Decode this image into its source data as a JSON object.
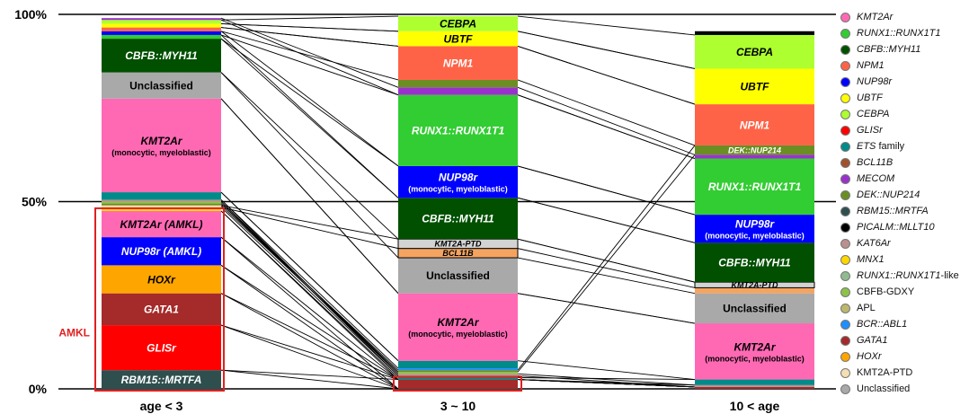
{
  "chart_data": {
    "type": "bar",
    "subtype": "stacked-100-percent-with-connectors",
    "y_tick_labels": [
      "100%",
      "50%",
      "0%"
    ],
    "ylim": [
      0,
      100
    ],
    "categories": [
      "age < 3",
      "3 ~ 10",
      "10 < age"
    ],
    "bar_colors": [
      "#ffffff",
      "#ffffff",
      "#ffffff"
    ],
    "highlight_label": "AMKL",
    "highlight_color": "#e02020",
    "grid": "horizontal lines at 0%, 50%, 100%",
    "legend_position": "right",
    "stacks": [
      {
        "category": "age < 3",
        "segments": [
          {
            "key": "RBM15",
            "label": "RBM15::MRTFA",
            "value": 5.0,
            "color": "#2f4f4f"
          },
          {
            "key": "GLIS",
            "label": "GLISr",
            "value": 12.0,
            "color": "#ff0000"
          },
          {
            "key": "GATA1",
            "label": "GATA1",
            "value": 8.5,
            "color": "#a52a2a"
          },
          {
            "key": "HOX",
            "label": "HOXr",
            "value": 7.5,
            "color": "#ffa500"
          },
          {
            "key": "NUP98_AMKL",
            "label": "NUP98r (AMKL)",
            "value": 7.5,
            "color": "#0000ff"
          },
          {
            "key": "KMT2A_AMKL",
            "label": "KMT2Ar (AMKL)",
            "value": 7.0,
            "color": "#ff69b4"
          },
          {
            "key": "MNX1",
            "label": "",
            "value": 1.0,
            "color": "#ffd700"
          },
          {
            "key": "KMT2APTD",
            "label": "",
            "value": 0.5,
            "color": "#f5deb3"
          },
          {
            "key": "DEK",
            "label": "",
            "value": 0.5,
            "color": "#6b8e23"
          },
          {
            "key": "CBFBGDXY",
            "label": "",
            "value": 0.5,
            "color": "#8bc34a"
          },
          {
            "key": "KAT6A",
            "label": "",
            "value": 0.5,
            "color": "#bc8f8f"
          },
          {
            "key": "ETS",
            "label": "",
            "value": 2.0,
            "color": "#008b8b"
          },
          {
            "key": "KMT2A",
            "label": "KMT2Ar",
            "sublabel": "(monocytic, myeloblastic)",
            "value": 25.0,
            "color": "#ff69b4"
          },
          {
            "key": "UNCL",
            "label": "Unclassified",
            "value": 7.0,
            "color": "#a9a9a9"
          },
          {
            "key": "CBFB",
            "label": "CBFB::MYH11",
            "value": 9.0,
            "color": "#005000"
          },
          {
            "key": "RUNX1",
            "label": "",
            "value": 1.0,
            "color": "#32cd32"
          },
          {
            "key": "NUP98",
            "label": "",
            "value": 1.0,
            "color": "#0000ff"
          },
          {
            "key": "NPM1",
            "label": "",
            "value": 1.0,
            "color": "#ff6347"
          },
          {
            "key": "UBTF",
            "label": "",
            "value": 1.0,
            "color": "#ffff00"
          },
          {
            "key": "CEBPA",
            "label": "",
            "value": 1.0,
            "color": "#adff2f"
          },
          {
            "key": "MECOM",
            "label": "",
            "value": 0.5,
            "color": "#9932cc"
          }
        ]
      },
      {
        "category": "3 ~ 10",
        "segments": [
          {
            "key": "AMKLgrp",
            "label": "",
            "value": 2.5,
            "color": "#a52a2a"
          },
          {
            "key": "ETS",
            "label": "",
            "value": 0.5,
            "color": "#008b8b"
          },
          {
            "key": "MNX1",
            "label": "",
            "value": 0.5,
            "color": "#ffd700"
          },
          {
            "key": "KAT6A",
            "label": "",
            "value": 0.5,
            "color": "#bc8f8f"
          },
          {
            "key": "CBFBGDXY",
            "label": "",
            "value": 0.5,
            "color": "#8bc34a"
          },
          {
            "key": "DEK",
            "label": "",
            "value": 0.5,
            "color": "#6b8e23"
          },
          {
            "key": "BCRABL",
            "label": "",
            "value": 0.5,
            "color": "#1e90ff"
          },
          {
            "key": "ETS2",
            "label": "",
            "value": 2.0,
            "color": "#008b8b"
          },
          {
            "key": "KMT2A",
            "label": "KMT2Ar",
            "sublabel": "(monocytic, myeloblastic)",
            "value": 18.0,
            "color": "#ff69b4"
          },
          {
            "key": "UNCL",
            "label": "Unclassified",
            "value": 9.5,
            "color": "#a9a9a9"
          },
          {
            "key": "BCL11B",
            "label": "BCL11B",
            "value": 2.5,
            "color": "#f4a460"
          },
          {
            "key": "KMT2APTD",
            "label": "KMT2A-PTD",
            "value": 2.5,
            "color": "#d3d3d3"
          },
          {
            "key": "CBFB",
            "label": "CBFB::MYH11",
            "value": 11.0,
            "color": "#005000"
          },
          {
            "key": "NUP98",
            "label": "NUP98r",
            "sublabel": "(monocytic, myeloblastic)",
            "value": 8.5,
            "color": "#0000ff"
          },
          {
            "key": "RUNX1",
            "label": "RUNX1::RUNX1T1",
            "value": 19.0,
            "color": "#32cd32"
          },
          {
            "key": "MECOM",
            "label": "",
            "value": 2.0,
            "color": "#9932cc"
          },
          {
            "key": "DEK2",
            "label": "",
            "value": 2.0,
            "color": "#6b8e23"
          },
          {
            "key": "NPM1",
            "label": "NPM1",
            "value": 9.0,
            "color": "#ff6347"
          },
          {
            "key": "UBTF",
            "label": "UBTF",
            "value": 4.0,
            "color": "#ffff00"
          },
          {
            "key": "CEBPA",
            "label": "CEBPA",
            "value": 4.0,
            "color": "#adff2f"
          }
        ]
      },
      {
        "category": "10 < age",
        "segments": [
          {
            "key": "AMKLgrp",
            "label": "",
            "value": 0.5,
            "color": "#a52a2a"
          },
          {
            "key": "KAT6A",
            "label": "",
            "value": 0.5,
            "color": "#bc8f8f"
          },
          {
            "key": "ETS",
            "label": "",
            "value": 1.5,
            "color": "#008b8b"
          },
          {
            "key": "KMT2A",
            "label": "KMT2Ar",
            "sublabel": "(monocytic, myeloblastic)",
            "value": 15.0,
            "color": "#ff69b4"
          },
          {
            "key": "UNCL",
            "label": "Unclassified",
            "value": 8.0,
            "color": "#a9a9a9"
          },
          {
            "key": "BCL11B",
            "label": "",
            "value": 1.5,
            "color": "#f4a460"
          },
          {
            "key": "KMT2APTD",
            "label": "KMT2A-PTD",
            "value": 1.5,
            "color": "#d3d3d3"
          },
          {
            "key": "CBFB",
            "label": "CBFB::MYH11",
            "value": 10.5,
            "color": "#005000"
          },
          {
            "key": "NUP98",
            "label": "NUP98r",
            "sublabel": "(monocytic, myeloblastic)",
            "value": 7.5,
            "color": "#0000ff"
          },
          {
            "key": "RUNX1",
            "label": "RUNX1::RUNX1T1",
            "value": 15.0,
            "color": "#32cd32"
          },
          {
            "key": "MECOM",
            "label": "",
            "value": 1.0,
            "color": "#9932cc"
          },
          {
            "key": "DEK",
            "label": "DEK::NUP214",
            "value": 2.5,
            "color": "#6b8e23"
          },
          {
            "key": "NPM1",
            "label": "NPM1",
            "value": 11.0,
            "color": "#ff6347"
          },
          {
            "key": "UBTF",
            "label": "UBTF",
            "value": 9.5,
            "color": "#ffff00"
          },
          {
            "key": "CEBPA",
            "label": "CEBPA",
            "value": 9.0,
            "color": "#adff2f"
          },
          {
            "key": "PICALM",
            "label": "",
            "value": 1.0,
            "color": "#000000"
          }
        ]
      }
    ],
    "connections": [
      {
        "from": "RBM15",
        "to": "AMKLgrp"
      },
      {
        "from": "GLIS",
        "to": "AMKLgrp"
      },
      {
        "from": "GATA1",
        "to": "AMKLgrp"
      },
      {
        "from": "HOX",
        "to": "AMKLgrp"
      },
      {
        "from": "NUP98_AMKL",
        "to": "AMKLgrp"
      },
      {
        "from": "KMT2A_AMKL",
        "to": "AMKLgrp"
      },
      {
        "from": "MNX1",
        "to": "MNX1"
      },
      {
        "from": "KMT2APTD",
        "to": "KMT2APTD"
      },
      {
        "from": "DEK",
        "to": "DEK"
      },
      {
        "from": "CBFBGDXY",
        "to": "CBFBGDXY"
      },
      {
        "from": "KAT6A",
        "to": "KAT6A"
      },
      {
        "from": "ETS",
        "to": "ETS2"
      },
      {
        "from": "KMT2A",
        "to": "KMT2A"
      },
      {
        "from": "UNCL",
        "to": "UNCL"
      },
      {
        "from": "CBFB",
        "to": "CBFB"
      },
      {
        "from": "RUNX1",
        "to": "RUNX1"
      },
      {
        "from": "NUP98",
        "to": "NUP98"
      },
      {
        "from": "NPM1",
        "to": "NPM1"
      },
      {
        "from": "UBTF",
        "to": "UBTF"
      },
      {
        "from": "CEBPA",
        "to": "CEBPA"
      },
      {
        "from": "MECOM",
        "to": "MECOM"
      }
    ],
    "legend": [
      {
        "label": "KMT2Ar",
        "color": "#ff69b4"
      },
      {
        "label": "RUNX1::RUNX1T1",
        "color": "#32cd32"
      },
      {
        "label": "CBFB::MYH11",
        "color": "#005000"
      },
      {
        "label": "NPM1",
        "color": "#ff6347"
      },
      {
        "label": "NUP98r",
        "color": "#0000ff"
      },
      {
        "label": "UBTF",
        "color": "#ffff00"
      },
      {
        "label": "CEBPA",
        "color": "#adff2f"
      },
      {
        "label": "GLISr",
        "color": "#ff0000"
      },
      {
        "label": "ETS",
        "suffix": " family",
        "color": "#008b8b"
      },
      {
        "label": "BCL11B",
        "color": "#a0522d"
      },
      {
        "label": "MECOM",
        "color": "#9932cc"
      },
      {
        "label": "DEK::NUP214",
        "color": "#6b8e23"
      },
      {
        "label": "RBM15::MRTFA",
        "color": "#2f4f4f"
      },
      {
        "label": "PICALM::MLLT10",
        "color": "#000000"
      },
      {
        "label": "KAT6Ar",
        "color": "#bc8f8f"
      },
      {
        "label": "MNX1",
        "color": "#ffd700"
      },
      {
        "label": "RUNX1::RUNX1T1",
        "suffix": "-like",
        "color": "#8fbc8f"
      },
      {
        "label": "",
        "upright": "CBFB-GDXY",
        "color": "#8bc34a"
      },
      {
        "label": "",
        "upright": "APL",
        "color": "#bdb76b"
      },
      {
        "label": "BCR::ABL1",
        "color": "#1e90ff"
      },
      {
        "label": "GATA1",
        "color": "#a52a2a"
      },
      {
        "label": "HOXr",
        "color": "#ffa500"
      },
      {
        "label": "",
        "upright": "KMT2A-PTD",
        "color": "#f5deb3"
      },
      {
        "label": "",
        "upright": "Unclassified",
        "color": "#a9a9a9"
      }
    ]
  }
}
